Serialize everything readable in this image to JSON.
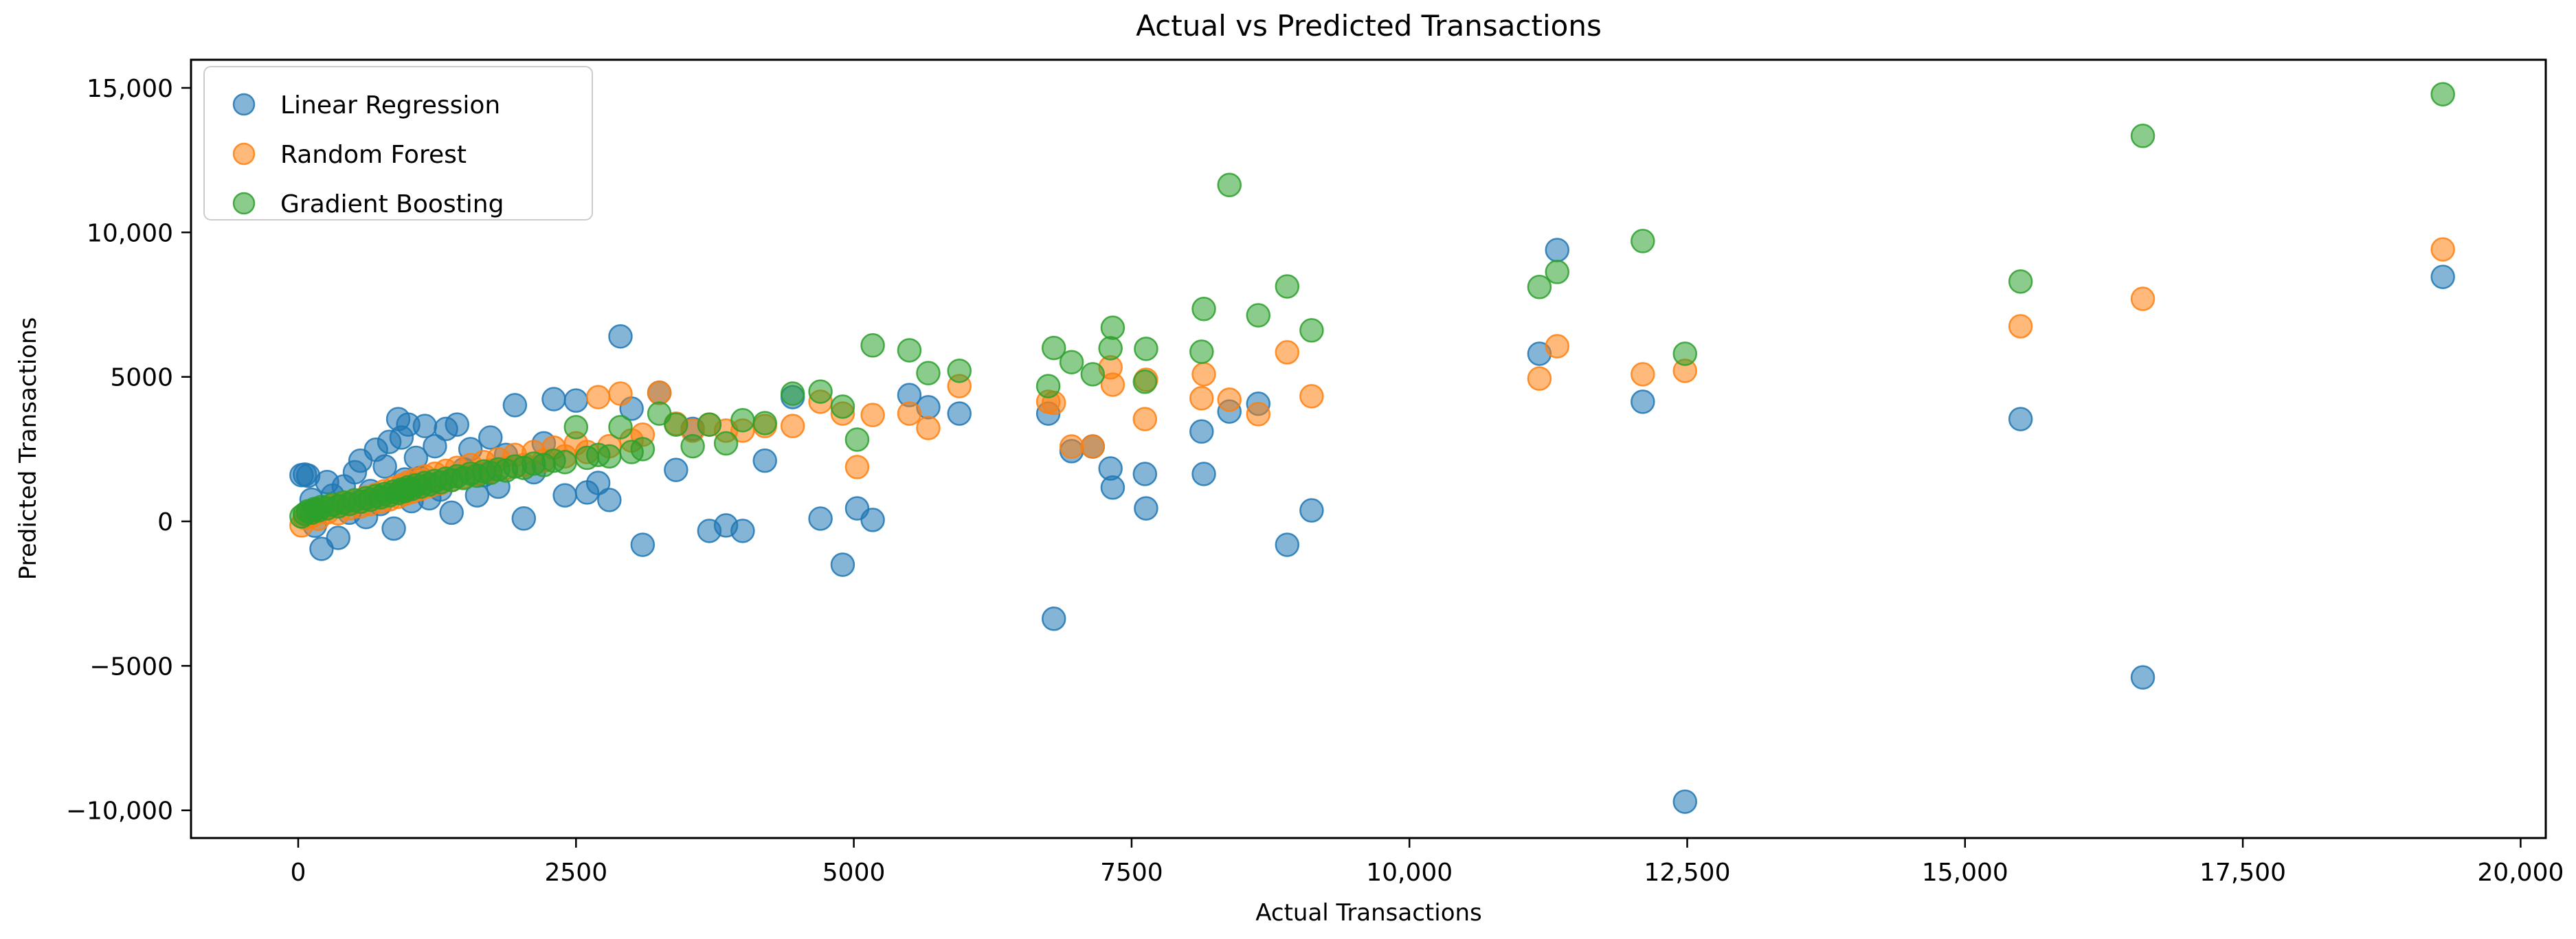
{
  "title": "Actual vs Predicted Transactions",
  "xlabel": "Actual Transactions",
  "ylabel": "Predicted Transactions",
  "legend": {
    "position": "upper left",
    "entries": [
      {
        "label": "Linear Regression",
        "color": "#1f77b4"
      },
      {
        "label": "Random Forest",
        "color": "#ff7f0e"
      },
      {
        "label": "Gradient Boosting",
        "color": "#2ca02c"
      }
    ]
  },
  "axes": {
    "x_ticks": [
      {
        "v": 0,
        "label": "0"
      },
      {
        "v": 2500,
        "label": "2500"
      },
      {
        "v": 5000,
        "label": "5000"
      },
      {
        "v": 7500,
        "label": "7500"
      },
      {
        "v": 10000,
        "label": "10,000"
      },
      {
        "v": 12500,
        "label": "12,500"
      },
      {
        "v": 15000,
        "label": "15,000"
      },
      {
        "v": 17500,
        "label": "17,500"
      },
      {
        "v": 20000,
        "label": "20,000"
      }
    ],
    "y_ticks": [
      {
        "v": 15000,
        "label": "15,000"
      },
      {
        "v": 10000,
        "label": "10,000"
      },
      {
        "v": 5000,
        "label": "5000"
      },
      {
        "v": 0,
        "label": "0"
      },
      {
        "v": -5000,
        "label": "−5000"
      },
      {
        "v": -10000,
        "label": "−10,000"
      }
    ],
    "xlim": [
      -965,
      20225
    ],
    "ylim": [
      -10960,
      15975
    ],
    "grid": false
  },
  "chart_data": {
    "type": "scatter",
    "title": "Actual vs Predicted Transactions",
    "xlabel": "Actual Transactions",
    "ylabel": "Predicted Transactions",
    "marker_alpha": 0.55,
    "x": [
      30,
      60,
      90,
      120,
      150,
      180,
      210,
      260,
      310,
      360,
      410,
      460,
      510,
      560,
      610,
      650,
      700,
      740,
      780,
      820,
      860,
      900,
      930,
      960,
      990,
      1020,
      1060,
      1100,
      1140,
      1180,
      1230,
      1280,
      1330,
      1380,
      1430,
      1490,
      1550,
      1610,
      1670,
      1730,
      1800,
      1870,
      1950,
      2030,
      2120,
      2210,
      2300,
      2400,
      2500,
      2600,
      2700,
      2800,
      2900,
      3000,
      3100,
      3250,
      3400,
      3550,
      3700,
      3850,
      4000,
      4200,
      4450,
      4700,
      4900,
      5030,
      5170,
      5500,
      5670,
      5950,
      6750,
      6800,
      6960,
      7150,
      7310,
      7330,
      7620,
      7630,
      8130,
      8150,
      8380,
      8640,
      8900,
      9120,
      11170,
      11330,
      12100,
      12480,
      15500,
      16600,
      19300
    ],
    "series": [
      {
        "name": "Linear Regression",
        "color": "#1f77b4",
        "y": [
          1600,
          1620,
          1580,
          750,
          -150,
          420,
          -950,
          1360,
          890,
          -570,
          1210,
          300,
          1700,
          2100,
          150,
          1050,
          2480,
          600,
          1900,
          2750,
          -250,
          3540,
          2900,
          1450,
          3350,
          700,
          2200,
          1500,
          3300,
          800,
          2600,
          1100,
          3200,
          300,
          3350,
          1800,
          2500,
          900,
          1600,
          2900,
          1200,
          2300,
          4020,
          100,
          1700,
          2700,
          4230,
          900,
          4180,
          1000,
          1330,
          740,
          6400,
          3900,
          -810,
          4450,
          1780,
          3200,
          -330,
          -140,
          -330,
          2100,
          4300,
          95,
          -1500,
          450,
          50,
          4370,
          3950,
          3730,
          3730,
          -3370,
          2430,
          2590,
          1830,
          1170,
          1640,
          450,
          3110,
          1640,
          3800,
          4070,
          -810,
          380,
          5800,
          9390,
          4140,
          -9700,
          3540,
          -5400,
          8460
        ]
      },
      {
        "name": "Random Forest",
        "color": "#ff7f0e",
        "y": [
          -140,
          120,
          260,
          180,
          320,
          90,
          400,
          310,
          540,
          280,
          620,
          450,
          710,
          520,
          830,
          600,
          920,
          680,
          1050,
          760,
          1150,
          850,
          1250,
          950,
          1350,
          1020,
          1450,
          1120,
          1550,
          1220,
          1650,
          1320,
          1750,
          1430,
          1850,
          1550,
          1950,
          1650,
          2050,
          1750,
          2150,
          1850,
          2300,
          1950,
          2400,
          2100,
          2550,
          2250,
          2700,
          2400,
          4300,
          2600,
          4420,
          2800,
          3000,
          4450,
          3380,
          3140,
          3350,
          3140,
          3140,
          3300,
          3300,
          4140,
          3730,
          1880,
          3680,
          3730,
          3230,
          4680,
          4140,
          4100,
          2590,
          2590,
          5330,
          4730,
          3540,
          4900,
          4260,
          5090,
          4210,
          3710,
          5850,
          4330,
          4940,
          6060,
          5090,
          5210,
          6750,
          7700,
          9410
        ]
      },
      {
        "name": "Gradient Boosting",
        "color": "#2ca02c",
        "y": [
          170,
          260,
          350,
          300,
          430,
          380,
          500,
          450,
          580,
          520,
          650,
          600,
          730,
          680,
          800,
          750,
          880,
          830,
          950,
          900,
          1030,
          980,
          1100,
          1050,
          1180,
          1120,
          1250,
          1200,
          1330,
          1280,
          1400,
          1350,
          1480,
          1430,
          1560,
          1500,
          1650,
          1580,
          1730,
          1680,
          1800,
          1760,
          1900,
          1850,
          2000,
          1950,
          2100,
          2050,
          3260,
          2200,
          2300,
          2250,
          3260,
          2400,
          2500,
          3730,
          3350,
          2600,
          3350,
          2700,
          3500,
          3400,
          4420,
          4490,
          3970,
          2830,
          6090,
          5920,
          5130,
          5210,
          4680,
          6000,
          5510,
          5090,
          5990,
          6700,
          4830,
          5970,
          5870,
          7350,
          11640,
          7130,
          8130,
          6610,
          8110,
          8630,
          9700,
          5800,
          8300,
          13340,
          14780
        ]
      }
    ]
  }
}
